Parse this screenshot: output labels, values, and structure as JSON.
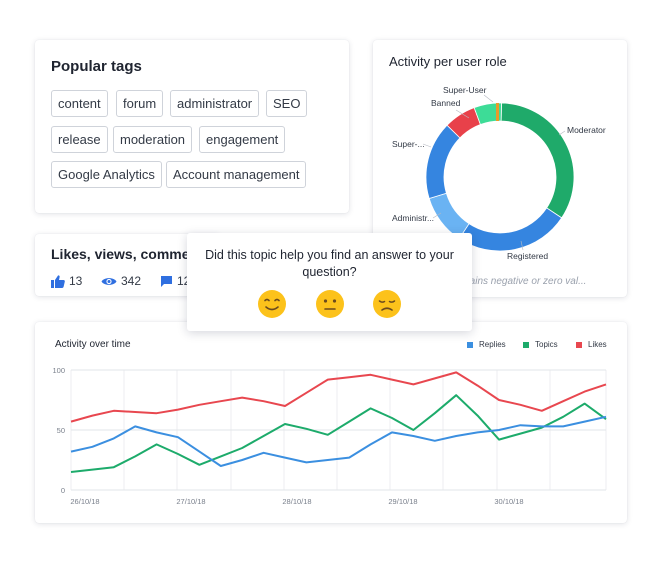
{
  "tags_card": {
    "title": "Popular tags",
    "tags": [
      "content",
      "forum",
      "administrator",
      "SEO",
      "release",
      "moderation",
      "engagement",
      "Google Analytics",
      "Account management"
    ]
  },
  "role_card": {
    "title": "Activity per user role",
    "note": "...ntains negative or zero val...",
    "labels": [
      "Super-User",
      "Banned",
      "Moderator",
      "Super-...",
      "Administr...",
      "Registered"
    ]
  },
  "likes_card": {
    "title": "Likes, views, comments",
    "likes": "13",
    "views": "342",
    "comments": "12"
  },
  "feedback": {
    "question": "Did this topic help you find an answer to your question?",
    "options": [
      "happy-face-icon",
      "neutral-face-icon",
      "sad-face-icon"
    ]
  },
  "chart_data": [
    {
      "type": "pie",
      "title": "Activity per user role",
      "labels": [
        "Moderator",
        "Registered",
        "Administr...",
        "Super-...",
        "Banned",
        "Super-User"
      ],
      "values": [
        34,
        25,
        11,
        17,
        7,
        6
      ],
      "colors": [
        "#1faa6a",
        "#3585e0",
        "#6ab3f3",
        "#3585e0",
        "#e8414a",
        "#3ddc97"
      ]
    },
    {
      "type": "line",
      "title": "Activity over time",
      "x": [
        "26/10/18",
        "",
        "",
        "",
        "",
        "27/10/18",
        "",
        "",
        "",
        "",
        "28/10/18",
        "",
        "",
        "",
        "",
        "29/10/18",
        "",
        "",
        "",
        "",
        "30/10/18",
        "",
        "",
        "",
        "",
        ""
      ],
      "xticks": [
        "26/10/18",
        "27/10/18",
        "28/10/18",
        "29/10/18",
        "30/10/18"
      ],
      "ylim": [
        0,
        100
      ],
      "yticks": [
        0,
        50,
        100
      ],
      "legend_position": "top-right",
      "series": [
        {
          "name": "Replies",
          "color": "#3b8fe0",
          "values": [
            32,
            36,
            43,
            53,
            48,
            44,
            32,
            20,
            25,
            31,
            27,
            23,
            25,
            27,
            38,
            48,
            45,
            41,
            45,
            48,
            50,
            54,
            53,
            53,
            57,
            61
          ]
        },
        {
          "name": "Topics",
          "color": "#1dab6b",
          "values": [
            15,
            17,
            19,
            28,
            38,
            30,
            21,
            28,
            35,
            45,
            55,
            51,
            46,
            57,
            68,
            60,
            50,
            64,
            79,
            62,
            42,
            47,
            52,
            61,
            72,
            59
          ]
        },
        {
          "name": "Likes",
          "color": "#e8474f",
          "values": [
            57,
            62,
            66,
            65,
            64,
            67,
            71,
            74,
            77,
            74,
            70,
            81,
            92,
            94,
            96,
            92,
            88,
            93,
            98,
            87,
            75,
            71,
            66,
            74,
            82,
            88
          ]
        }
      ]
    }
  ]
}
